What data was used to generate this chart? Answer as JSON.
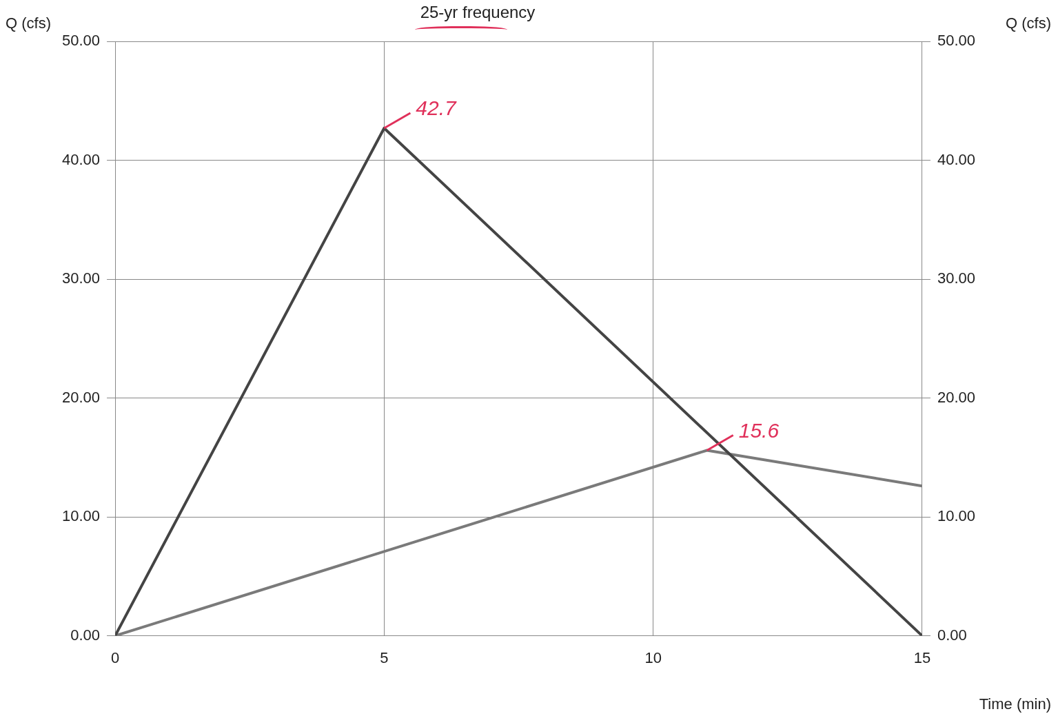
{
  "chart_data": {
    "type": "line",
    "title": "25-yr frequency",
    "xlabel": "Time (min)",
    "ylabel": "Q (cfs)",
    "y2label": "Q (cfs)",
    "series": [
      {
        "color": "#444444",
        "x": [
          0,
          5,
          15
        ],
        "values": [
          0,
          42.7,
          0
        ]
      },
      {
        "color": "#7a7a7a",
        "x": [
          0,
          11,
          15
        ],
        "values": [
          0,
          15.6,
          12.6
        ]
      }
    ],
    "xlim": [
      0,
      15
    ],
    "xticks": [
      0,
      5,
      10,
      15
    ],
    "ylim": [
      0,
      50
    ],
    "yticks": [
      {
        "value": 0,
        "label": "0.00"
      },
      {
        "value": 10,
        "label": "10.00"
      },
      {
        "value": 20,
        "label": "20.00"
      },
      {
        "value": 30,
        "label": "30.00"
      },
      {
        "value": 40,
        "label": "40.00"
      },
      {
        "value": 50,
        "label": "50.00"
      }
    ],
    "y2lim": [
      0,
      50
    ],
    "y2ticks": [
      {
        "value": 0,
        "label": "0.00"
      },
      {
        "value": 10,
        "label": "10.00"
      },
      {
        "value": 20,
        "label": "20.00"
      },
      {
        "value": 30,
        "label": "30.00"
      },
      {
        "value": 40,
        "label": "40.00"
      },
      {
        "value": 50,
        "label": "50.00"
      }
    ],
    "annotations": [
      {
        "text": "42.7",
        "x": 5,
        "y": 42.7
      },
      {
        "text": "15.6",
        "x": 11,
        "y": 15.6
      }
    ],
    "grid": true,
    "legend": false,
    "marker": "none",
    "line_style": "solid"
  }
}
